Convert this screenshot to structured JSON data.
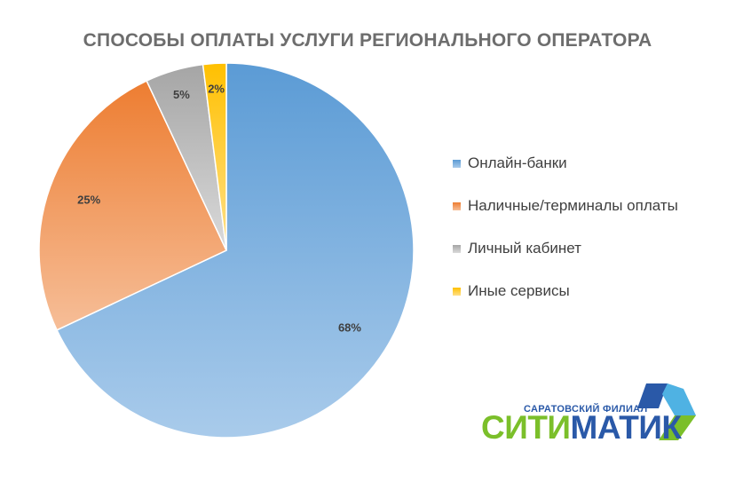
{
  "chart_data": {
    "type": "pie",
    "title": "СПОСОБЫ ОПЛАТЫ УСЛУГИ РЕГИОНАЛЬНОГО ОПЕРАТОРА",
    "categories": [
      "Онлайн-банки",
      "Наличные/терминалы оплаты",
      "Личный кабинет",
      "Иные сервисы"
    ],
    "values": [
      68,
      25,
      5,
      2
    ],
    "data_labels": [
      "68%",
      "25%",
      "5%",
      "2%"
    ],
    "colors": [
      "#5b9bd5",
      "#ed7d31",
      "#a5a5a5",
      "#ffc000"
    ],
    "legend_position": "right"
  },
  "logo": {
    "subtitle": "САРАТОВСКИЙ ФИЛИАЛ",
    "word_part1": "СИТИ",
    "word_part2": "МАТИК"
  }
}
